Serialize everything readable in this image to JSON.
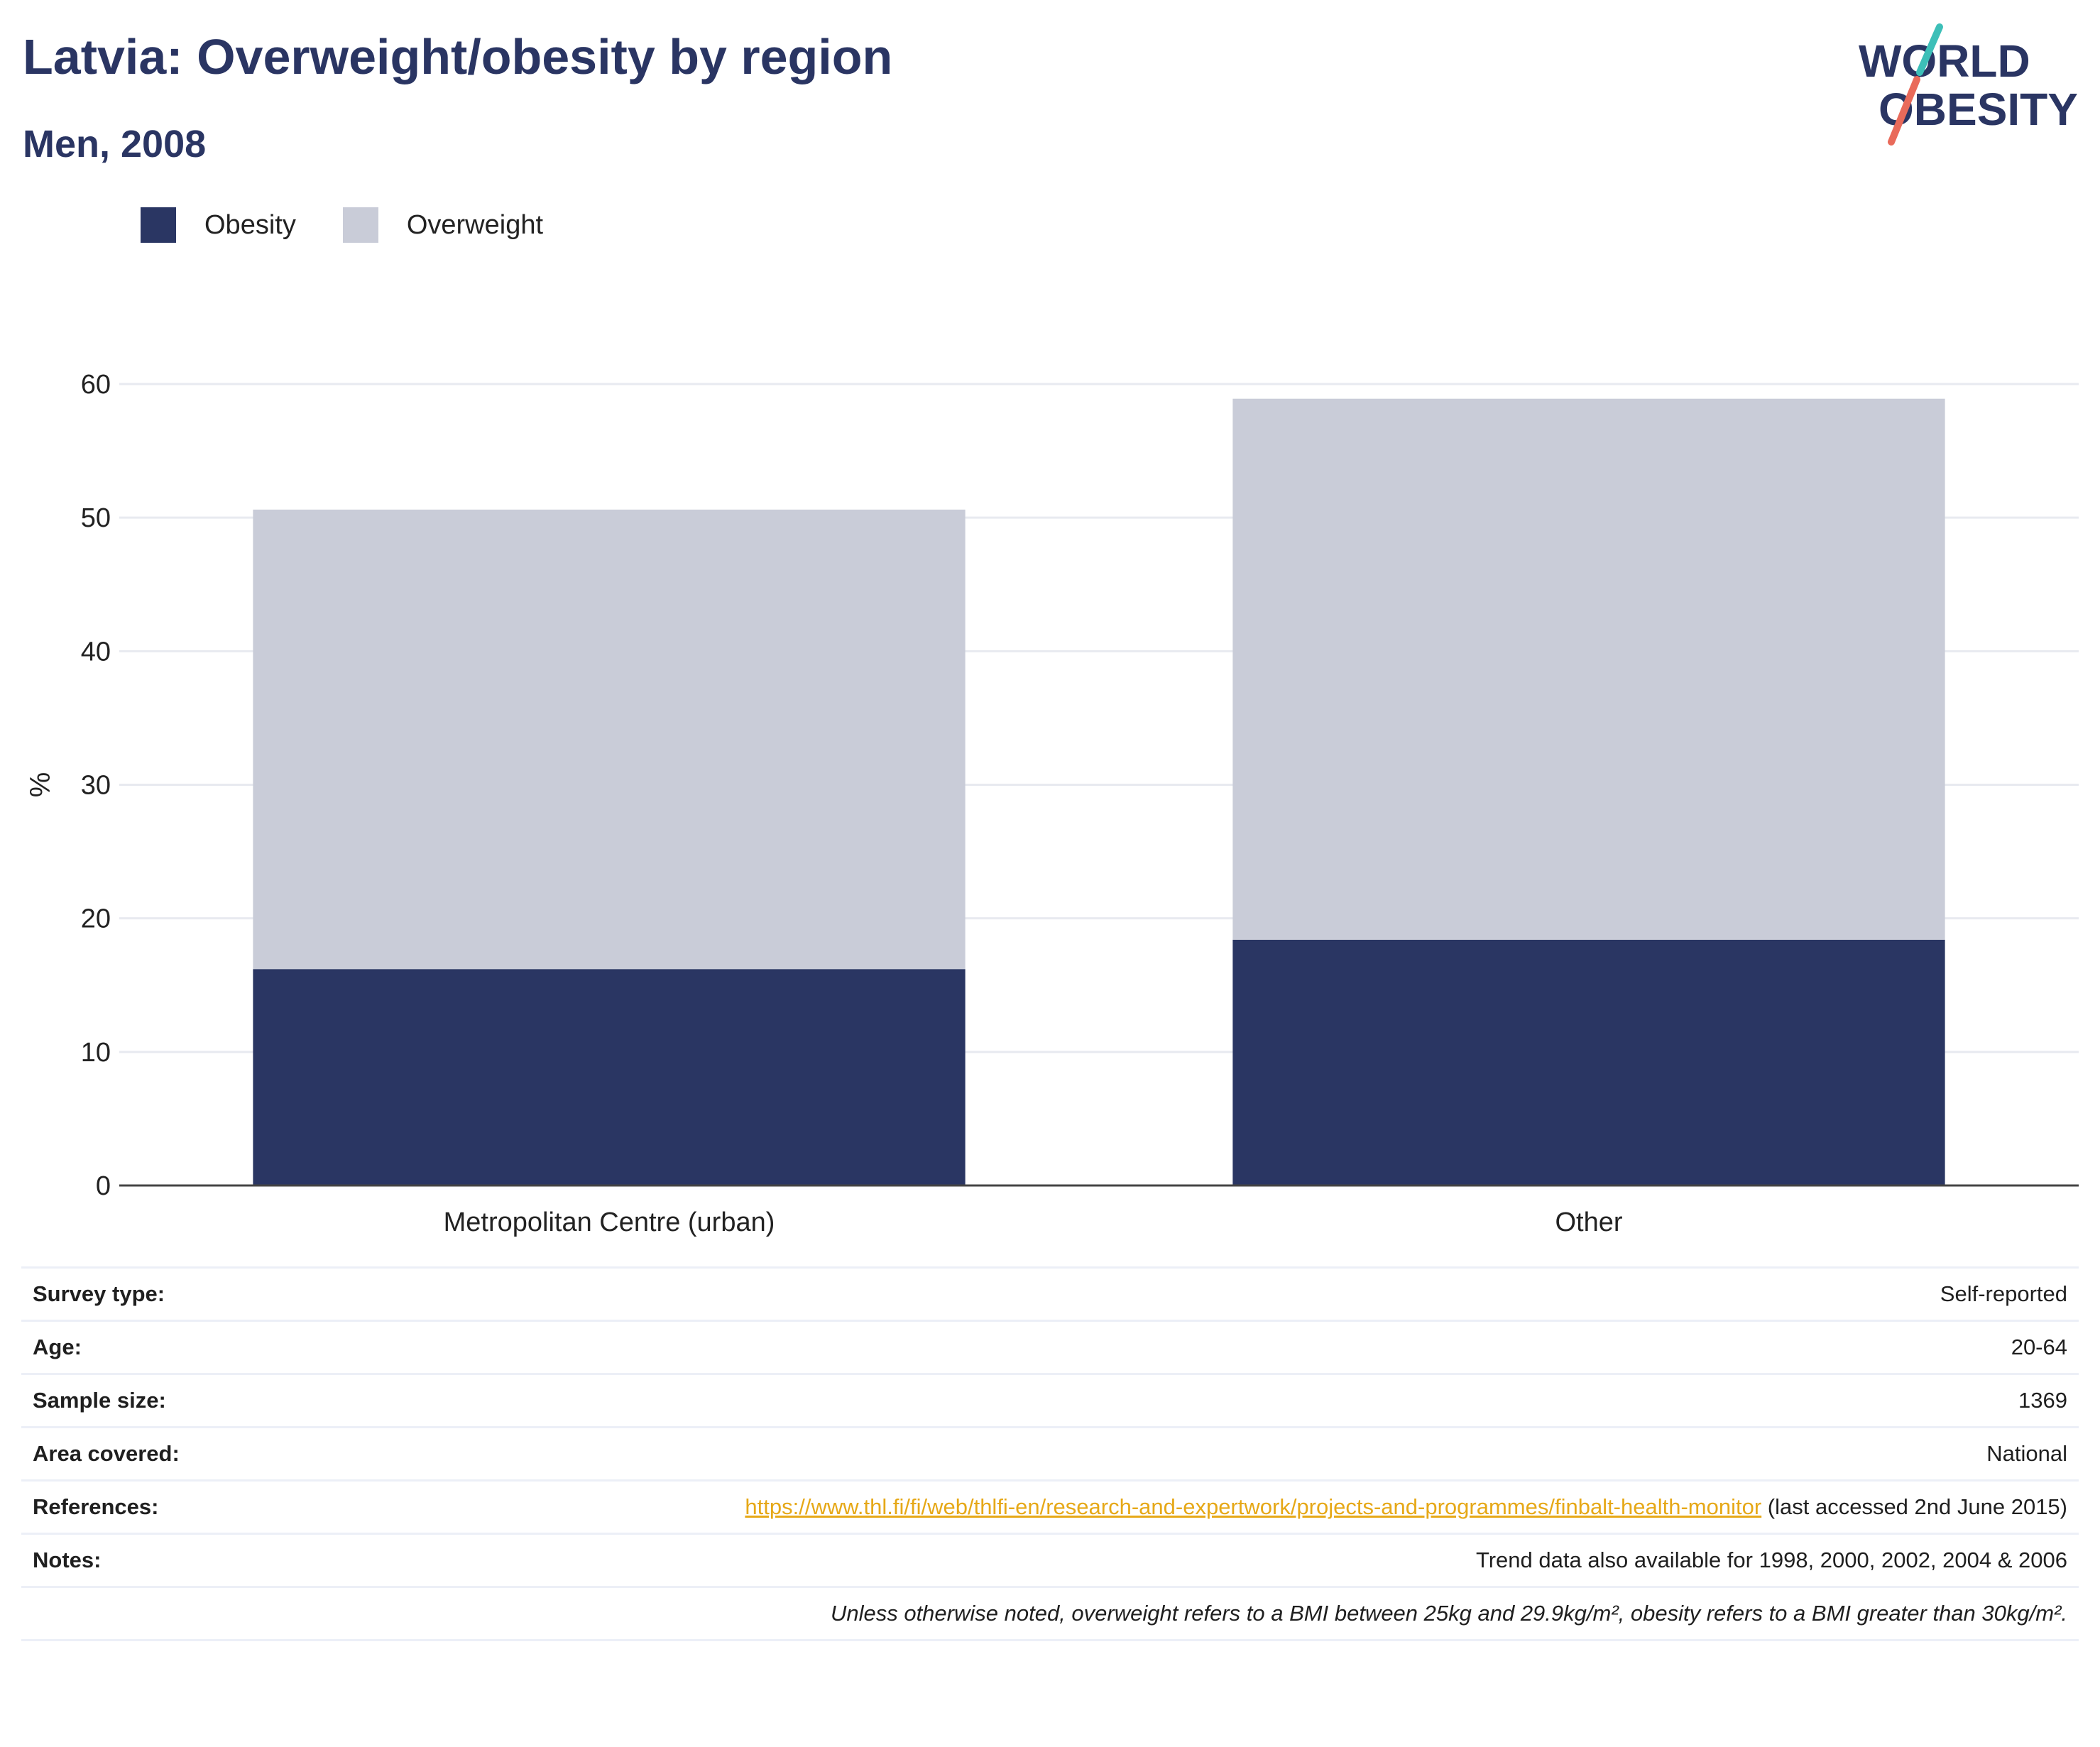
{
  "header": {
    "title": "Latvia: Overweight/obesity by region",
    "subtitle": "Men, 2008",
    "logo_line1": "WORLD",
    "logo_line2": "OBESITY"
  },
  "colors": {
    "obesity": "#2a3663",
    "overweight": "#c9ccd8",
    "title": "#2a3563",
    "link": "#e6a817",
    "logo_teal": "#3dbfb8",
    "logo_coral": "#e96a5a"
  },
  "chart_data": {
    "type": "bar",
    "stacked": true,
    "categories": [
      "Metropolitan Centre (urban)",
      "Other"
    ],
    "series": [
      {
        "name": "Obesity",
        "values": [
          16.2,
          18.4
        ]
      },
      {
        "name": "Overweight",
        "values": [
          34.4,
          40.5
        ]
      }
    ],
    "ylabel": "%",
    "ylim": [
      0,
      60
    ],
    "yticks": [
      0,
      10,
      20,
      30,
      40,
      50,
      60
    ],
    "grid": true,
    "legend_position": "top-left"
  },
  "meta": {
    "rows": [
      {
        "label": "Survey type:",
        "value": "Self-reported"
      },
      {
        "label": "Age:",
        "value": "20-64"
      },
      {
        "label": "Sample size:",
        "value": "1369"
      },
      {
        "label": "Area covered:",
        "value": "National"
      }
    ],
    "references_label": "References:",
    "references_link": "https://www.thl.fi/fi/web/thlfi-en/research-and-expertwork/projects-and-programmes/finbalt-health-monitor",
    "references_suffix": " (last accessed 2nd June 2015)",
    "notes_label": "Notes:",
    "notes_value": "Trend data also available for 1998, 2000, 2002, 2004 & 2006",
    "footnote": "Unless otherwise noted, overweight refers to a BMI between 25kg and 29.9kg/m², obesity refers to a BMI greater than 30kg/m²."
  }
}
